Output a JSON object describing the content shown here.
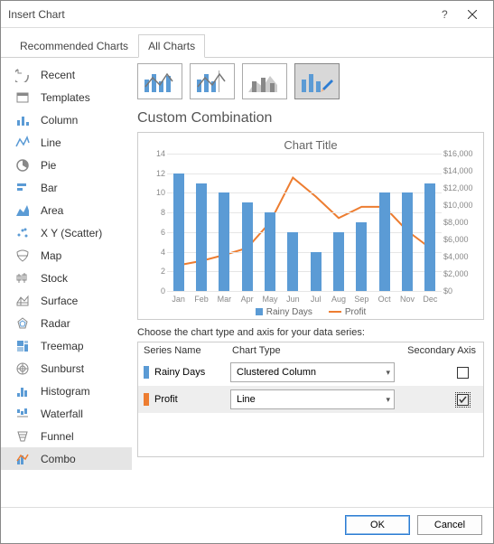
{
  "window": {
    "title": "Insert Chart"
  },
  "tabs": {
    "recommended": "Recommended Charts",
    "all": "All Charts"
  },
  "sidebar": [
    {
      "label": "Recent"
    },
    {
      "label": "Templates"
    },
    {
      "label": "Column"
    },
    {
      "label": "Line"
    },
    {
      "label": "Pie"
    },
    {
      "label": "Bar"
    },
    {
      "label": "Area"
    },
    {
      "label": "X Y (Scatter)"
    },
    {
      "label": "Map"
    },
    {
      "label": "Stock"
    },
    {
      "label": "Surface"
    },
    {
      "label": "Radar"
    },
    {
      "label": "Treemap"
    },
    {
      "label": "Sunburst"
    },
    {
      "label": "Histogram"
    },
    {
      "label": "Waterfall"
    },
    {
      "label": "Funnel"
    },
    {
      "label": "Combo"
    }
  ],
  "section_title": "Custom Combination",
  "chart": {
    "title": "Chart Title",
    "categories": [
      "Jan",
      "Feb",
      "Mar",
      "Apr",
      "May",
      "Jun",
      "Jul",
      "Aug",
      "Sep",
      "Oct",
      "Nov",
      "Dec"
    ],
    "bars": {
      "color": "#5b9bd5",
      "values": [
        12,
        11,
        10,
        9,
        8,
        6,
        4,
        6,
        7,
        10,
        10,
        11
      ],
      "ymax": 14
    },
    "line": {
      "color": "#ed7d31",
      "values": [
        3000,
        3500,
        4200,
        5000,
        8000,
        13200,
        11000,
        8500,
        9800,
        9800,
        7000,
        5000
      ],
      "ymax": 16000
    },
    "yleft": {
      "ticks": [
        0,
        2,
        4,
        6,
        8,
        10,
        12,
        14
      ]
    },
    "yright": {
      "ticks": [
        "$0",
        "$2,000",
        "$4,000",
        "$6,000",
        "$8,000",
        "$10,000",
        "$12,000",
        "$14,000",
        "$16,000"
      ]
    },
    "grid_color": "#e6e6e6",
    "legend": {
      "bars": "Rainy Days",
      "line": "Profit"
    }
  },
  "series_section": {
    "prompt": "Choose the chart type and axis for your data series:",
    "headers": {
      "name": "Series Name",
      "type": "Chart Type",
      "axis": "Secondary Axis"
    },
    "rows": [
      {
        "label": "Rainy Days",
        "swatch": "#5b9bd5",
        "type": "Clustered Column",
        "secondary": false,
        "selected": false
      },
      {
        "label": "Profit",
        "swatch": "#ed7d31",
        "type": "Line",
        "secondary": true,
        "selected": true
      }
    ]
  },
  "footer": {
    "ok": "OK",
    "cancel": "Cancel"
  }
}
